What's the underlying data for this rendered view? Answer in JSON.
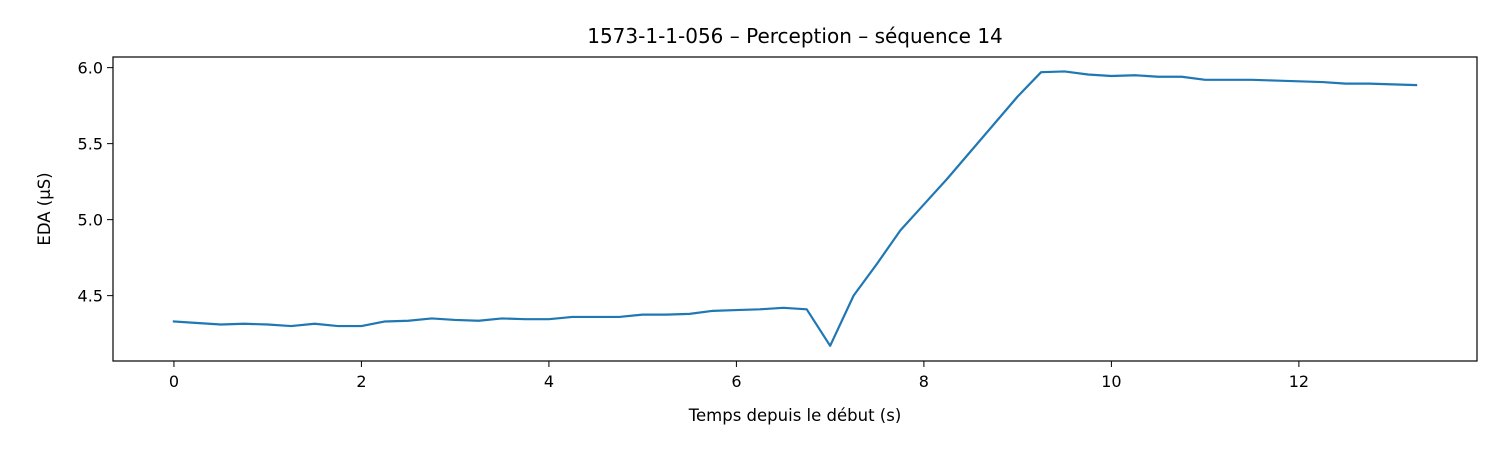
{
  "chart_data": {
    "type": "line",
    "title": "1573-1-1-056 – Perception – séquence 14",
    "xlabel": "Temps depuis le début (s)",
    "ylabel": "EDA (µS)",
    "xlim": [
      -0.65,
      13.9
    ],
    "ylim": [
      4.07,
      6.07
    ],
    "xticks": [
      0,
      2,
      4,
      6,
      8,
      10,
      12
    ],
    "yticks": [
      4.5,
      5.0,
      5.5,
      6.0
    ],
    "xtick_labels": [
      "0",
      "2",
      "4",
      "6",
      "8",
      "10",
      "12"
    ],
    "ytick_labels": [
      "4.5",
      "5.0",
      "5.5",
      "6.0"
    ],
    "grid": false,
    "series": [
      {
        "color": "#1f77b4",
        "x": [
          0,
          0.25,
          0.5,
          0.75,
          1.0,
          1.25,
          1.5,
          1.75,
          2.0,
          2.25,
          2.5,
          2.75,
          3.0,
          3.25,
          3.5,
          3.75,
          4.0,
          4.25,
          4.5,
          4.75,
          5.0,
          5.25,
          5.5,
          5.75,
          6.0,
          6.25,
          6.5,
          6.75,
          7.0,
          7.25,
          7.5,
          7.75,
          8.0,
          8.25,
          8.5,
          8.75,
          9.0,
          9.25,
          9.5,
          9.75,
          10.0,
          10.25,
          10.5,
          10.75,
          11.0,
          11.25,
          11.5,
          11.75,
          12.0,
          12.25,
          12.5,
          12.75,
          13.0,
          13.25
        ],
        "y": [
          4.33,
          4.32,
          4.31,
          4.315,
          4.31,
          4.3,
          4.315,
          4.3,
          4.3,
          4.33,
          4.335,
          4.35,
          4.34,
          4.335,
          4.35,
          4.345,
          4.345,
          4.36,
          4.36,
          4.36,
          4.375,
          4.375,
          4.38,
          4.4,
          4.405,
          4.41,
          4.42,
          4.41,
          4.17,
          4.5,
          4.71,
          4.93,
          5.1,
          5.27,
          5.45,
          5.63,
          5.81,
          5.97,
          5.975,
          5.955,
          5.945,
          5.95,
          5.94,
          5.94,
          5.92,
          5.92,
          5.92,
          5.915,
          5.91,
          5.905,
          5.895,
          5.895,
          5.89,
          5.885
        ]
      }
    ]
  }
}
